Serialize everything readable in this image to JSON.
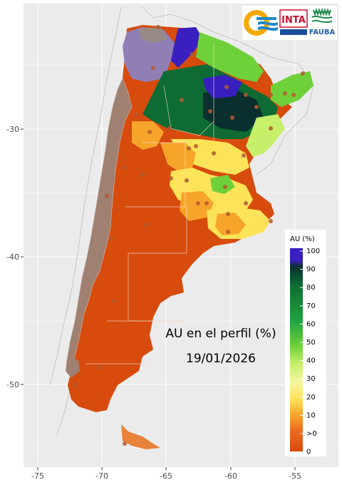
{
  "map": {
    "title_line1": "AU en el perfil (%)",
    "title_line2": "19/01/2026",
    "x_ticks": [
      "-75",
      "-70",
      "-65",
      "-60",
      "-55"
    ],
    "y_ticks": [
      "-30",
      "-40",
      "-50"
    ],
    "background_color": "#ebebeb",
    "gridline_color": "#ffffff"
  },
  "legend": {
    "title": "AU (%)",
    "labels": [
      "100",
      "90",
      "80",
      "70",
      "60",
      "50",
      "40",
      "30",
      "20",
      "10",
      ">0",
      "0"
    ],
    "colors": [
      "#3a1fc0",
      "#0b2f2f",
      "#0d6b33",
      "#22a340",
      "#6fd13a",
      "#c6f06a",
      "#f5f5a0",
      "#fde35a",
      "#f7a52a",
      "#ea6a20",
      "#d94a10"
    ]
  },
  "logos": {
    "inta_text": "INTA",
    "fauba_text": "FAUBA"
  },
  "colors": {
    "dry": "#d74b0d",
    "no_data": "#a08070",
    "puna": "#8f7fb5"
  }
}
